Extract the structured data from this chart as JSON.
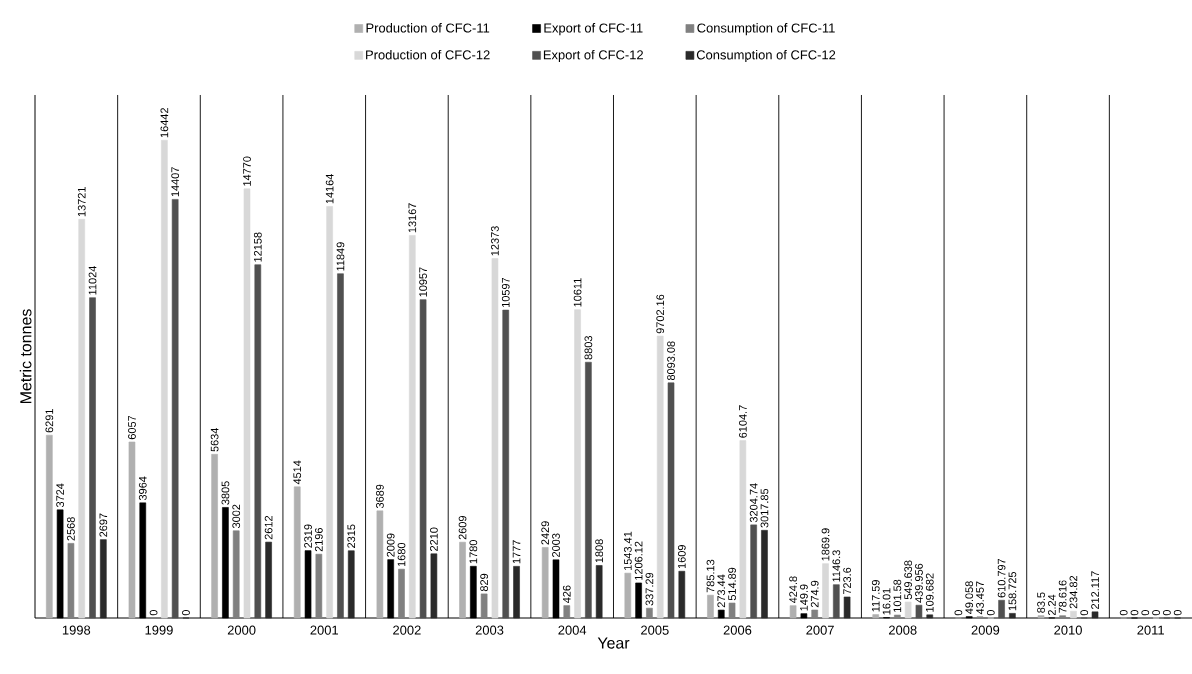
{
  "chart_data": {
    "type": "bar",
    "xlabel": "Year",
    "ylabel": "Metric tonnes",
    "categories": [
      "1998",
      "1999",
      "2000",
      "2001",
      "2002",
      "2003",
      "2004",
      "2005",
      "2006",
      "2007",
      "2008",
      "2009",
      "2010",
      "2011"
    ],
    "series": [
      {
        "name": "Production of CFC-11",
        "color": "#b0b0b0",
        "values": [
          6291,
          6057,
          5634,
          4514,
          3689,
          2609,
          2429,
          1543.41,
          785.13,
          424.8,
          117.59,
          0,
          83.5,
          0
        ]
      },
      {
        "name": "Export of CFC-11",
        "color": "#000000",
        "values": [
          3724,
          3964,
          3805,
          2319,
          2009,
          1780,
          2003,
          1206.12,
          273.44,
          149.9,
          16.01,
          49.058,
          2.24,
          0
        ]
      },
      {
        "name": "Consumption of CFC-11",
        "color": "#808080",
        "values": [
          2568,
          0,
          3002,
          2196,
          1680,
          829,
          426,
          337.29,
          514.89,
          274.9,
          101.58,
          43.457,
          78.616,
          0
        ]
      },
      {
        "name": "Production of CFC-12",
        "color": "#d8d8d8",
        "values": [
          13721,
          16442,
          14770,
          14164,
          13167,
          12373,
          10611,
          9702.16,
          6104.7,
          1869.9,
          549.638,
          0,
          234.82,
          0
        ]
      },
      {
        "name": "Export of CFC-12",
        "color": "#505050",
        "values": [
          11024,
          14407,
          12158,
          11849,
          10957,
          10597,
          8803,
          8093.08,
          3204.74,
          1146.3,
          439.956,
          610.797,
          0,
          0
        ]
      },
      {
        "name": "Consumption of CFC-12",
        "color": "#2a2a2a",
        "values": [
          2697,
          0,
          2612,
          2315,
          2210,
          1777,
          1808,
          1609,
          3017.85,
          723.6,
          109.682,
          158.725,
          212.117,
          0
        ]
      }
    ],
    "ylim": [
      0,
      18000
    ],
    "tick_labels": "x",
    "grid": "x",
    "legend": "top",
    "data_labels": true
  }
}
